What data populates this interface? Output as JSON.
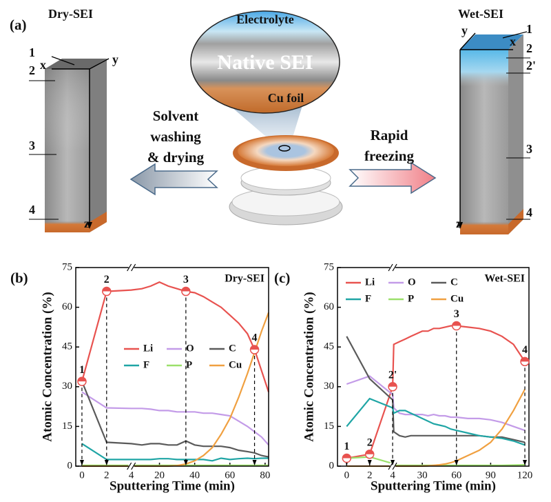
{
  "diagram": {
    "panel_label": "(a)",
    "dry_title": "Dry-SEI",
    "wet_title": "Wet-SEI",
    "lens": {
      "top": "Electrolyte",
      "middle": "Native SEI",
      "bottom": "Cu foil"
    },
    "left_arrow_text": [
      "Solvent",
      "washing",
      "& drying"
    ],
    "right_arrow_text": [
      "Rapid",
      "freezing"
    ],
    "dry_block": {
      "labels": [
        "1",
        "2",
        "3",
        "4"
      ],
      "axes": [
        "x",
        "y",
        "z"
      ]
    },
    "wet_block": {
      "labels": [
        "1",
        "2",
        "2'",
        "3",
        "4"
      ],
      "axes": [
        "y",
        "x",
        "z"
      ]
    }
  },
  "chart_data": [
    {
      "type": "line",
      "panel_label": "(b)",
      "title": "Dry-SEI",
      "xlabel": "Sputtering Time (min)",
      "ylabel": "Atomic Concentration (%)",
      "x": [
        0,
        2,
        4,
        10,
        15,
        20,
        25,
        30,
        35,
        40,
        45,
        50,
        55,
        60,
        65,
        70,
        74,
        78,
        82
      ],
      "series": [
        {
          "name": "Li",
          "color": "#e8524f",
          "values": [
            32,
            66,
            66.5,
            67,
            68,
            69.5,
            68,
            67,
            66,
            65.5,
            64,
            62,
            60,
            57,
            54,
            50,
            44,
            36,
            28
          ]
        },
        {
          "name": "O",
          "color": "#c39be8",
          "values": [
            28,
            22,
            21.8,
            21.8,
            21.5,
            21,
            21,
            20.5,
            20.5,
            20.5,
            20,
            20,
            19.5,
            19,
            17,
            15,
            13,
            11,
            8
          ]
        },
        {
          "name": "C",
          "color": "#5a5a5a",
          "values": [
            32,
            9,
            8.5,
            8,
            8.5,
            8.5,
            8,
            8,
            9.5,
            8,
            7.5,
            7.5,
            7.5,
            7,
            6,
            5.5,
            5,
            4,
            3.5
          ]
        },
        {
          "name": "F",
          "color": "#1fa5a5",
          "values": [
            8.5,
            2.5,
            2.5,
            2.5,
            2.5,
            2.8,
            2.8,
            2.5,
            2.5,
            2.5,
            2.5,
            2,
            3,
            2.5,
            2.8,
            3,
            2.8,
            3,
            3
          ]
        },
        {
          "name": "P",
          "color": "#9be06a",
          "values": [
            0.3,
            0.3,
            0.3,
            0.3,
            0.3,
            0.3,
            0.3,
            0.3,
            0.3,
            0.3,
            0.3,
            0.3,
            0.3,
            0.3,
            0.3,
            0.3,
            0.3,
            0.3,
            0.3
          ]
        },
        {
          "name": "Cu",
          "color": "#f0a040",
          "values": [
            0,
            0,
            0,
            0,
            0,
            0,
            0,
            0.2,
            0.8,
            2,
            4,
            7,
            12,
            18,
            26,
            35,
            43,
            51,
            58
          ]
        }
      ],
      "annotations": [
        {
          "text": "1",
          "x": 0,
          "y": 32
        },
        {
          "text": "2",
          "x": 2,
          "y": 66
        },
        {
          "text": "3",
          "x": 35,
          "y": 66
        },
        {
          "text": "4",
          "x": 74,
          "y": 44
        }
      ],
      "xlim": [
        -0.5,
        82
      ],
      "xbreak": 4,
      "xticks": [
        0,
        2,
        4,
        20,
        40,
        60,
        80
      ],
      "ylim": [
        0,
        75
      ],
      "yticks": [
        0,
        15,
        30,
        45,
        60,
        75
      ],
      "legend": "center"
    },
    {
      "type": "line",
      "panel_label": "(c)",
      "title": "Wet-SEI",
      "xlabel": "Sputtering Time (min)",
      "ylabel": "Atomic Concentration (%)",
      "x": [
        0,
        2,
        4,
        5,
        10,
        15,
        20,
        25,
        30,
        35,
        40,
        45,
        50,
        55,
        60,
        70,
        80,
        90,
        100,
        110,
        120
      ],
      "series": [
        {
          "name": "Li",
          "color": "#e8524f",
          "values": [
            3,
            4.5,
            30,
            46,
            47,
            48,
            49,
            50,
            51,
            51,
            52,
            52,
            52.5,
            53,
            53,
            52.5,
            52,
            51,
            49,
            46,
            39.5
          ]
        },
        {
          "name": "O",
          "color": "#c39be8",
          "values": [
            31,
            34,
            27,
            22,
            20,
            19.5,
            19.5,
            19.5,
            19.5,
            19,
            19.5,
            19,
            19,
            18.5,
            18.5,
            18,
            18,
            17.5,
            16.5,
            15,
            13.5
          ]
        },
        {
          "name": "C",
          "color": "#5a5a5a",
          "values": [
            49,
            33,
            25,
            13,
            11.5,
            11,
            11.5,
            11.5,
            11.5,
            11.5,
            11.5,
            11.5,
            11.5,
            11.5,
            11.5,
            11.5,
            11.5,
            11,
            11,
            10,
            9
          ]
        },
        {
          "name": "F",
          "color": "#1fa5a5",
          "values": [
            15,
            25.5,
            22,
            20,
            21,
            21,
            20,
            19,
            18,
            17,
            16,
            15.5,
            15,
            14,
            13.5,
            12.5,
            11.5,
            11,
            10.5,
            9.5,
            8
          ]
        },
        {
          "name": "P",
          "color": "#9be06a",
          "values": [
            3,
            3.5,
            1,
            0.3,
            0.3,
            0.3,
            0.3,
            0.3,
            0.3,
            0.3,
            0.3,
            0.3,
            0.3,
            0.3,
            0.3,
            0.3,
            0.3,
            0.3,
            0.3,
            0.4,
            0.5
          ]
        },
        {
          "name": "Cu",
          "color": "#f0a040",
          "values": [
            0,
            0,
            0,
            0,
            0,
            0,
            0,
            0,
            0,
            0.1,
            0.3,
            0.5,
            0.8,
            1.3,
            2,
            4,
            6,
            9,
            14,
            21,
            29
          ]
        }
      ],
      "annotations": [
        {
          "text": "1",
          "x": 0,
          "y": 3
        },
        {
          "text": "2",
          "x": 2,
          "y": 4.5
        },
        {
          "text": "2'",
          "x": 4,
          "y": 30
        },
        {
          "text": "3",
          "x": 60,
          "y": 53
        },
        {
          "text": "4",
          "x": 120,
          "y": 39.5
        }
      ],
      "xlim": [
        -0.8,
        123.6
      ],
      "xbreak": 4,
      "xticks": [
        0,
        2,
        4,
        30,
        60,
        90,
        120
      ],
      "ylim": [
        0,
        75
      ],
      "yticks": [
        0,
        15,
        30,
        45,
        60,
        75
      ],
      "legend": "upper left"
    }
  ]
}
